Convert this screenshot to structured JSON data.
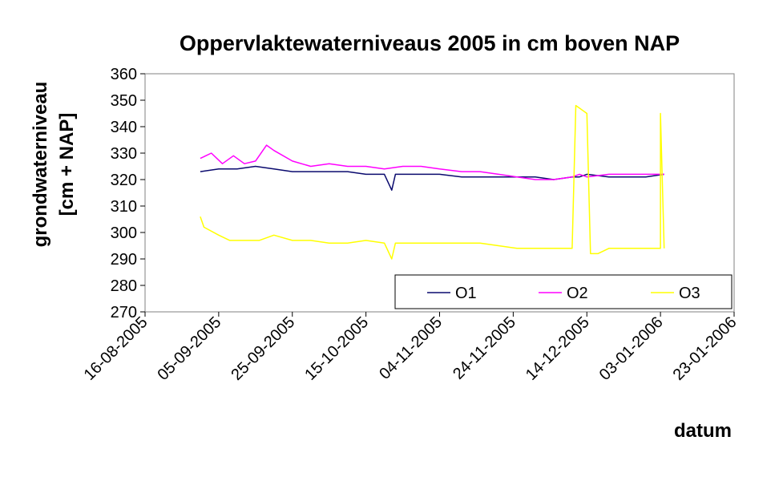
{
  "chart_data": {
    "type": "line",
    "title": "Oppervlaktewaterniveaus 2005 in cm boven NAP",
    "ylabel_line1": "grondwaterniveau",
    "ylabel_line2": "[cm + NAP]",
    "xlabel": "datum",
    "ylim": [
      270,
      360
    ],
    "yticks": [
      "270",
      "280",
      "290",
      "300",
      "310",
      "320",
      "330",
      "340",
      "350",
      "360"
    ],
    "xlim": [
      "2005-08-16",
      "2006-01-23"
    ],
    "xticks": [
      "16-08-2005",
      "05-09-2005",
      "25-09-2005",
      "15-10-2005",
      "04-11-2005",
      "24-11-2005",
      "14-12-2005",
      "03-01-2006",
      "23-01-2006"
    ],
    "grid": false,
    "legend_position": "bottom-right",
    "series": [
      {
        "name": "O1",
        "color": "#0a0a6e",
        "points": [
          [
            "2005-08-31",
            323
          ],
          [
            "2005-09-05",
            324
          ],
          [
            "2005-09-10",
            324
          ],
          [
            "2005-09-15",
            325
          ],
          [
            "2005-09-20",
            324
          ],
          [
            "2005-09-25",
            323
          ],
          [
            "2005-09-30",
            323
          ],
          [
            "2005-10-05",
            323
          ],
          [
            "2005-10-10",
            323
          ],
          [
            "2005-10-15",
            322
          ],
          [
            "2005-10-20",
            322
          ],
          [
            "2005-10-22",
            316
          ],
          [
            "2005-10-23",
            322
          ],
          [
            "2005-10-30",
            322
          ],
          [
            "2005-11-04",
            322
          ],
          [
            "2005-11-10",
            321
          ],
          [
            "2005-11-15",
            321
          ],
          [
            "2005-11-20",
            321
          ],
          [
            "2005-11-25",
            321
          ],
          [
            "2005-11-30",
            321
          ],
          [
            "2005-12-05",
            320
          ],
          [
            "2005-12-10",
            321
          ],
          [
            "2005-12-12",
            321
          ],
          [
            "2005-12-14",
            322
          ],
          [
            "2005-12-20",
            321
          ],
          [
            "2005-12-25",
            321
          ],
          [
            "2005-12-30",
            321
          ],
          [
            "2006-01-04",
            322
          ]
        ]
      },
      {
        "name": "O2",
        "color": "#ff00ff",
        "points": [
          [
            "2005-08-31",
            328
          ],
          [
            "2005-09-03",
            330
          ],
          [
            "2005-09-06",
            326
          ],
          [
            "2005-09-09",
            329
          ],
          [
            "2005-09-12",
            326
          ],
          [
            "2005-09-15",
            327
          ],
          [
            "2005-09-18",
            333
          ],
          [
            "2005-09-20",
            331
          ],
          [
            "2005-09-25",
            327
          ],
          [
            "2005-09-30",
            325
          ],
          [
            "2005-10-05",
            326
          ],
          [
            "2005-10-10",
            325
          ],
          [
            "2005-10-15",
            325
          ],
          [
            "2005-10-20",
            324
          ],
          [
            "2005-10-25",
            325
          ],
          [
            "2005-10-30",
            325
          ],
          [
            "2005-11-04",
            324
          ],
          [
            "2005-11-10",
            323
          ],
          [
            "2005-11-15",
            323
          ],
          [
            "2005-11-20",
            322
          ],
          [
            "2005-11-25",
            321
          ],
          [
            "2005-11-30",
            320
          ],
          [
            "2005-12-05",
            320
          ],
          [
            "2005-12-10",
            321
          ],
          [
            "2005-12-12",
            322
          ],
          [
            "2005-12-14",
            321
          ],
          [
            "2005-12-20",
            322
          ],
          [
            "2005-12-25",
            322
          ],
          [
            "2005-12-30",
            322
          ],
          [
            "2006-01-04",
            322
          ]
        ]
      },
      {
        "name": "O3",
        "color": "#ffff00",
        "points": [
          [
            "2005-08-31",
            306
          ],
          [
            "2005-09-01",
            302
          ],
          [
            "2005-09-05",
            299
          ],
          [
            "2005-09-08",
            297
          ],
          [
            "2005-09-12",
            297
          ],
          [
            "2005-09-16",
            297
          ],
          [
            "2005-09-20",
            299
          ],
          [
            "2005-09-25",
            297
          ],
          [
            "2005-09-30",
            297
          ],
          [
            "2005-10-05",
            296
          ],
          [
            "2005-10-10",
            296
          ],
          [
            "2005-10-15",
            297
          ],
          [
            "2005-10-20",
            296
          ],
          [
            "2005-10-22",
            290
          ],
          [
            "2005-10-23",
            296
          ],
          [
            "2005-10-30",
            296
          ],
          [
            "2005-11-04",
            296
          ],
          [
            "2005-11-10",
            296
          ],
          [
            "2005-11-15",
            296
          ],
          [
            "2005-11-20",
            295
          ],
          [
            "2005-11-25",
            294
          ],
          [
            "2005-11-30",
            294
          ],
          [
            "2005-12-05",
            294
          ],
          [
            "2005-12-10",
            294
          ],
          [
            "2005-12-11",
            348
          ],
          [
            "2005-12-12",
            347
          ],
          [
            "2005-12-13",
            346
          ],
          [
            "2005-12-14",
            345
          ],
          [
            "2005-12-15",
            292
          ],
          [
            "2005-12-17",
            292
          ],
          [
            "2005-12-20",
            294
          ],
          [
            "2005-12-25",
            294
          ],
          [
            "2005-12-30",
            294
          ],
          [
            "2006-01-03",
            294
          ],
          [
            "2006-01-03",
            345
          ],
          [
            "2006-01-04",
            294
          ]
        ]
      }
    ]
  }
}
